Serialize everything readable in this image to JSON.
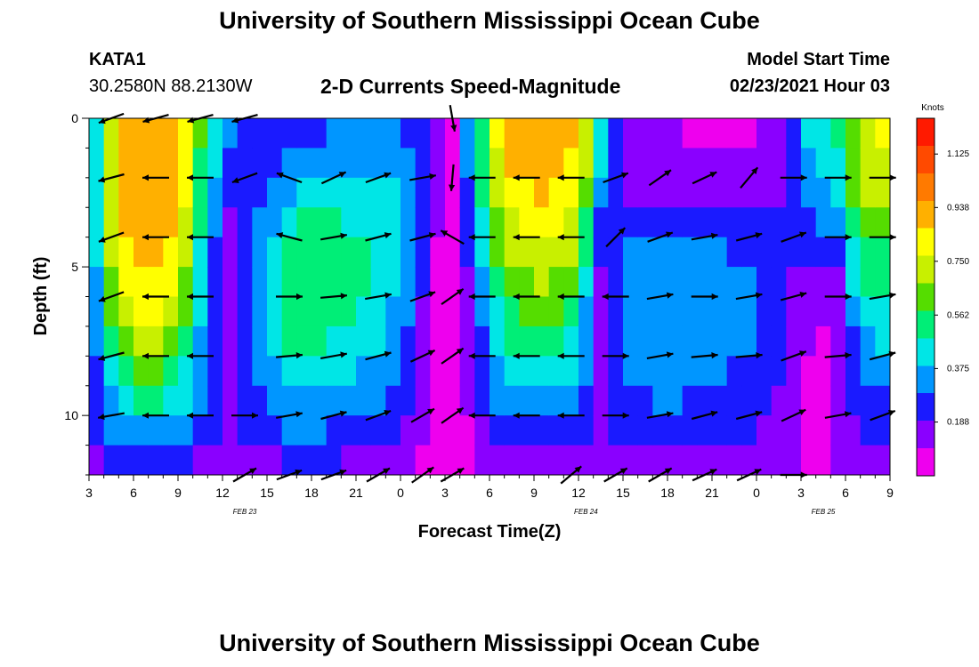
{
  "page": {
    "title": "University of Southern Mississippi Ocean Cube",
    "footer_title": "University of Southern Mississippi Ocean Cube",
    "station_id": "KATA1",
    "station_coords": "30.2580N 88.2130W",
    "plot_title": "2-D Currents Speed-Magnitude",
    "model_label": "Model Start Time",
    "model_time": "02/23/2021 Hour 03"
  },
  "colors": {
    "scale": [
      "#ee00ee",
      "#8a00ff",
      "#1a1aff",
      "#0096ff",
      "#00e6e6",
      "#00ee77",
      "#55dd00",
      "#c8f000",
      "#ffff00",
      "#ffb000",
      "#ff7a00",
      "#ff4a00",
      "#ff1a00"
    ],
    "arrow": "#000000"
  },
  "chart_data": {
    "type": "heatmap",
    "title": "2-D Currents Speed-Magnitude",
    "xlabel": "Forecast Time(Z)",
    "ylabel": "Depth (ft)",
    "x_start_hour": 3,
    "x_end_hour": 57,
    "x_tick_labels": [
      "3",
      "6",
      "9",
      "12",
      "15",
      "18",
      "21",
      "0",
      "3",
      "6",
      "9",
      "12",
      "15",
      "18",
      "21",
      "0",
      "3",
      "6",
      "9"
    ],
    "date_labels": [
      {
        "text": "FEB  23",
        "hour": 13.5
      },
      {
        "text": "FEB  24",
        "hour": 36.5
      },
      {
        "text": "FEB  25",
        "hour": 52.5
      }
    ],
    "y_range": [
      0,
      12
    ],
    "y_tick_labels": [
      "0",
      "5",
      "10"
    ],
    "colorbar_label": "Knots",
    "colorbar_range": [
      0,
      1.25
    ],
    "colorbar_tick_labels": [
      "0.188",
      "0.375",
      "0.562",
      "0.750",
      "0.938",
      "1.125"
    ],
    "depths": [
      0,
      2,
      4,
      6,
      8,
      10,
      12
    ],
    "speed_keyframes": [
      {
        "hour": 3,
        "speeds": [
          0.22,
          0.25,
          0.25,
          0.22,
          0.2,
          0.18,
          0.12
        ]
      },
      {
        "hour": 5,
        "speeds": [
          0.85,
          0.88,
          0.85,
          0.75,
          0.6,
          0.4,
          0.15
        ]
      },
      {
        "hour": 7,
        "speeds": [
          0.95,
          0.98,
          0.95,
          0.85,
          0.72,
          0.45,
          0.15
        ]
      },
      {
        "hour": 9,
        "speeds": [
          0.88,
          0.9,
          0.85,
          0.72,
          0.55,
          0.38,
          0.15
        ]
      },
      {
        "hour": 11,
        "speeds": [
          0.5,
          0.45,
          0.38,
          0.3,
          0.3,
          0.28,
          0.12
        ]
      },
      {
        "hour": 12.5,
        "speeds": [
          0.35,
          0.25,
          0.15,
          0.1,
          0.1,
          0.15,
          0.12
        ]
      },
      {
        "hour": 14,
        "speeds": [
          0.25,
          0.2,
          0.28,
          0.32,
          0.3,
          0.25,
          0.12
        ]
      },
      {
        "hour": 17,
        "speeds": [
          0.2,
          0.35,
          0.55,
          0.6,
          0.5,
          0.35,
          0.18
        ]
      },
      {
        "hour": 21,
        "speeds": [
          0.3,
          0.38,
          0.5,
          0.5,
          0.42,
          0.3,
          0.15
        ]
      },
      {
        "hour": 24,
        "speeds": [
          0.3,
          0.38,
          0.4,
          0.38,
          0.32,
          0.25,
          0.12
        ]
      },
      {
        "hour": 26.5,
        "speeds": [
          0.15,
          0.12,
          0.1,
          0.08,
          0.06,
          0.05,
          0.04
        ]
      },
      {
        "hour": 27.5,
        "speeds": [
          0.08,
          0.06,
          0.05,
          0.04,
          0.03,
          0.02,
          0.02
        ]
      },
      {
        "hour": 28.5,
        "speeds": [
          0.35,
          0.3,
          0.22,
          0.15,
          0.12,
          0.1,
          0.08
        ]
      },
      {
        "hour": 31,
        "speeds": [
          0.95,
          0.85,
          0.72,
          0.6,
          0.45,
          0.3,
          0.12
        ]
      },
      {
        "hour": 34,
        "speeds": [
          0.95,
          0.9,
          0.8,
          0.65,
          0.5,
          0.3,
          0.12
        ]
      },
      {
        "hour": 36,
        "speeds": [
          0.9,
          0.8,
          0.7,
          0.5,
          0.42,
          0.28,
          0.12
        ]
      },
      {
        "hour": 37.5,
        "speeds": [
          0.5,
          0.35,
          0.25,
          0.15,
          0.15,
          0.15,
          0.12
        ]
      },
      {
        "hour": 39,
        "speeds": [
          0.2,
          0.15,
          0.3,
          0.35,
          0.35,
          0.25,
          0.12
        ]
      },
      {
        "hour": 42,
        "speeds": [
          0.1,
          0.12,
          0.3,
          0.38,
          0.35,
          0.28,
          0.15
        ]
      },
      {
        "hour": 45,
        "speeds": [
          0.08,
          0.1,
          0.28,
          0.35,
          0.32,
          0.25,
          0.15
        ]
      },
      {
        "hour": 48,
        "speeds": [
          0.05,
          0.12,
          0.25,
          0.3,
          0.28,
          0.22,
          0.12
        ]
      },
      {
        "hour": 50,
        "speeds": [
          0.2,
          0.2,
          0.2,
          0.2,
          0.18,
          0.15,
          0.1
        ]
      },
      {
        "hour": 52,
        "speeds": [
          0.5,
          0.4,
          0.25,
          0.12,
          0.06,
          0.04,
          0.05
        ]
      },
      {
        "hour": 53.5,
        "speeds": [
          0.5,
          0.45,
          0.3,
          0.15,
          0.1,
          0.1,
          0.1
        ]
      },
      {
        "hour": 55,
        "speeds": [
          0.78,
          0.72,
          0.6,
          0.45,
          0.35,
          0.22,
          0.12
        ]
      },
      {
        "hour": 57,
        "speeds": [
          0.8,
          0.72,
          0.6,
          0.45,
          0.38,
          0.25,
          0.12
        ]
      }
    ],
    "arrow_hours": [
      4.5,
      7.5,
      10.5,
      13.5,
      16.5,
      19.5,
      22.5,
      25.5,
      27.5,
      29.5,
      32.5,
      35.5,
      38.5,
      41.5,
      44.5,
      47.5,
      50.5,
      53.5,
      56.5
    ],
    "arrow_depths": [
      0,
      2,
      4,
      6,
      8,
      10,
      12
    ],
    "arrow_angles_deg": [
      [
        200,
        195,
        200,
        200,
        195,
        190,
        185
      ],
      [
        195,
        180,
        180,
        180,
        180,
        180,
        180
      ],
      [
        195,
        180,
        180,
        180,
        180,
        180,
        180
      ],
      [
        195,
        200,
        170,
        0,
        0,
        0,
        30
      ],
      [
        175,
        160,
        165,
        0,
        5,
        10,
        20
      ],
      [
        0,
        25,
        10,
        5,
        10,
        15,
        20
      ],
      [
        0,
        20,
        15,
        10,
        15,
        20,
        30
      ],
      [
        0,
        10,
        15,
        20,
        25,
        30,
        35
      ],
      [
        280,
        265,
        150,
        35,
        35,
        35,
        30
      ],
      [
        180,
        180,
        180,
        180,
        180,
        180,
        180
      ],
      [
        180,
        180,
        180,
        180,
        180,
        180,
        180
      ],
      [
        180,
        180,
        180,
        180,
        180,
        180,
        40
      ],
      [
        0,
        20,
        45,
        180,
        0,
        0,
        30
      ],
      [
        0,
        35,
        20,
        10,
        10,
        10,
        30
      ],
      [
        0,
        25,
        10,
        0,
        5,
        15,
        25
      ],
      [
        0,
        50,
        15,
        10,
        5,
        15,
        25
      ],
      [
        0,
        0,
        20,
        15,
        20,
        25,
        0
      ],
      [
        0,
        0,
        0,
        0,
        5,
        10,
        0
      ],
      [
        0,
        0,
        0,
        10,
        15,
        20,
        0
      ]
    ],
    "arrow_visible": [
      [
        true,
        true,
        true,
        true,
        true,
        true,
        false
      ],
      [
        true,
        true,
        true,
        true,
        true,
        true,
        false
      ],
      [
        true,
        true,
        true,
        true,
        true,
        true,
        false
      ],
      [
        true,
        true,
        false,
        false,
        false,
        true,
        true
      ],
      [
        false,
        true,
        true,
        true,
        true,
        true,
        true
      ],
      [
        false,
        true,
        true,
        true,
        true,
        true,
        true
      ],
      [
        false,
        true,
        true,
        true,
        true,
        true,
        true
      ],
      [
        false,
        true,
        true,
        true,
        true,
        true,
        true
      ],
      [
        true,
        true,
        true,
        true,
        true,
        true,
        true
      ],
      [
        false,
        true,
        true,
        true,
        true,
        true,
        false
      ],
      [
        false,
        true,
        true,
        true,
        true,
        true,
        false
      ],
      [
        false,
        true,
        true,
        true,
        true,
        true,
        true
      ],
      [
        false,
        true,
        true,
        true,
        true,
        true,
        true
      ],
      [
        false,
        true,
        true,
        true,
        true,
        true,
        true
      ],
      [
        false,
        true,
        true,
        true,
        true,
        true,
        true
      ],
      [
        false,
        true,
        true,
        true,
        true,
        true,
        true
      ],
      [
        false,
        true,
        true,
        true,
        true,
        true,
        true
      ],
      [
        false,
        true,
        true,
        true,
        true,
        true,
        false
      ],
      [
        false,
        true,
        true,
        true,
        true,
        true,
        false
      ]
    ]
  }
}
